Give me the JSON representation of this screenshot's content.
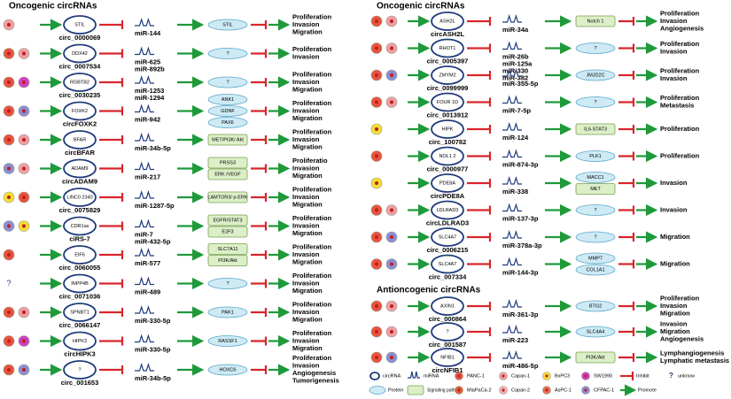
{
  "left": {
    "title": "Oncogenic circRNAs",
    "rows": [
      {
        "cells": [
          "#f0a0a0"
        ],
        "gene": "STIL",
        "circ": "circ_0000069",
        "mirnas": [
          "miR-144"
        ],
        "targets": [
          {
            "text": "STIL",
            "kind": "protein"
          }
        ],
        "outcomes": [
          "Proliferation",
          "Invasion",
          "Migration"
        ]
      },
      {
        "cells": [
          "#e8553a",
          "#f0a0a0"
        ],
        "gene": "DDX42",
        "circ": "circ_0007534",
        "mirnas": [
          "miR-625",
          "miR-892b"
        ],
        "targets": [
          {
            "text": "?",
            "kind": "protein"
          }
        ],
        "outcomes": [
          "Proliferation",
          "Invasion"
        ]
      },
      {
        "cells": [
          "#e8553a",
          "#d040c0"
        ],
        "gene": "RGBTB2",
        "circ": "circ_0030235",
        "mirnas": [
          "miR-1253",
          "miR-1294"
        ],
        "targets": [
          {
            "text": "?",
            "kind": "protein"
          }
        ],
        "outcomes": [
          "Proliferation",
          "Invasion",
          "Migration"
        ]
      },
      {
        "cells": [
          "#e8553a",
          "#8a8fd0"
        ],
        "gene": "FOXK2",
        "circ": "circFOXK2",
        "mirnas": [
          "miR-942"
        ],
        "targets": [
          {
            "text": "ANK1",
            "kind": "protein"
          },
          {
            "text": "GDNF",
            "kind": "protein"
          },
          {
            "text": "PAX6",
            "kind": "protein"
          }
        ],
        "outcomes": [
          "Proliferation",
          "Invasion",
          "Migration"
        ]
      },
      {
        "cells": [
          "#e8553a",
          "#f0a0a0"
        ],
        "gene": "BFAR",
        "circ": "circBFAR",
        "mirnas": [
          "miR-34b-5p"
        ],
        "targets": [
          {
            "text": "MET/PI3K/ Akt",
            "kind": "pathway"
          }
        ],
        "outcomes": [
          "Proliferation",
          "Invasion",
          "Migration"
        ]
      },
      {
        "cells": [
          "#8a8fd0",
          "#f0a0a0"
        ],
        "gene": "ADAM9",
        "circ": "circADAM9",
        "mirnas": [
          "miR-217"
        ],
        "targets": [
          {
            "text": "PRSS3",
            "kind": "pathway"
          },
          {
            "text": "ERK /VEGF",
            "kind": "pathway"
          }
        ],
        "outcomes": [
          "Proliferatio",
          "Invasion",
          "Migration"
        ]
      },
      {
        "cells": [
          "#f5e030",
          "#e8553a"
        ],
        "gene": "LINC0 2340",
        "circ": "circ_0075829",
        "mirnas": [
          "miR-1287-5p"
        ],
        "targets": [
          {
            "text": "LAMTOR3/ p-ERK",
            "kind": "pathway"
          }
        ],
        "outcomes": [
          "Proliferation",
          "Invasion",
          "Migration"
        ]
      },
      {
        "cells": [
          "#8a8fd0",
          "#f5e030"
        ],
        "gene": "CDR1as",
        "circ": "ciRS-7",
        "mirnas": [
          "miR-7",
          "miR-432-5p"
        ],
        "targets": [
          {
            "text": "EGFR/STAT3",
            "kind": "pathway"
          },
          {
            "text": "E2F3",
            "kind": "pathway"
          }
        ],
        "outcomes": [
          "Proliferation",
          "Invasion",
          "Migration"
        ]
      },
      {
        "cells": [
          "#e8553a"
        ],
        "gene": "EIF6",
        "circ": "circ_0060055",
        "mirnas": [
          "miR-577"
        ],
        "targets": [
          {
            "text": "SLC7A11",
            "kind": "pathway"
          },
          {
            "text": "PI3K/Akt",
            "kind": "pathway"
          }
        ],
        "outcomes": [
          "Proliferation",
          "Invasion",
          "Migration"
        ]
      },
      {
        "cells": [
          "?"
        ],
        "gene": "INPP4B",
        "circ": "circ_0071036",
        "mirnas": [
          "miR-489"
        ],
        "targets": [
          {
            "text": "?",
            "kind": "protein"
          }
        ],
        "outcomes": [
          "Proliferation",
          "Invasion",
          "Migration"
        ]
      },
      {
        "cells": [
          "#e8553a",
          "#f0a0a0"
        ],
        "gene": "SPNBT1",
        "circ": "circ_0066147",
        "mirnas": [
          "miR-330-5p"
        ],
        "targets": [
          {
            "text": "PAK1",
            "kind": "protein"
          }
        ],
        "outcomes": [
          "Proliferation",
          "Invasion",
          "Migration"
        ]
      },
      {
        "cells": [
          "#e8553a",
          "#d040c0"
        ],
        "gene": "HIPK3",
        "circ": "circHIPK3",
        "mirnas": [
          "miR-330-5p"
        ],
        "targets": [
          {
            "text": "RASSF1",
            "kind": "protein"
          }
        ],
        "outcomes": [
          "Proliferation",
          "Invasion",
          "Migration"
        ]
      },
      {
        "cells": [
          "#e8553a",
          "#8a8fd0"
        ],
        "gene": "?",
        "circ": "circ_001653",
        "mirnas": [
          "miR-34b-5p"
        ],
        "targets": [
          {
            "text": "HOXC6",
            "kind": "protein"
          }
        ],
        "outcomes": [
          "Proliferation",
          "Invasion",
          "Angiogenesis",
          "Tumorigenesis"
        ]
      }
    ]
  },
  "right": {
    "title": "Oncogenic circRNAs",
    "rows": [
      {
        "cells": [
          "#e8553a",
          "#f0a0a0"
        ],
        "gene": "ASH2L",
        "circ": "circASH2L",
        "mirnas": [
          "miR-34a"
        ],
        "targets": [
          {
            "text": "Notch 1",
            "kind": "pathway"
          }
        ],
        "outcomes": [
          "Proliferation",
          "Invasion",
          "Angiogenesis"
        ]
      },
      {
        "cells": [
          "#e8553a",
          "#f0a0a0"
        ],
        "gene": "RHOT1",
        "circ": "circ_0005397",
        "mirnas": [
          "miR-26b",
          "miR-125a",
          "miR-330",
          "miR-382"
        ],
        "targets": [
          {
            "text": "?",
            "kind": "protein"
          }
        ],
        "outcomes": [
          "Proliferation",
          "Invasion"
        ]
      },
      {
        "cells": [
          "#e8553a",
          "#8a8fd0"
        ],
        "gene": "ZMYM2",
        "circ": "circ_0099999",
        "mirnas": [
          "miR-355-5p"
        ],
        "targets": [
          {
            "text": "JMJD2C",
            "kind": "protein"
          }
        ],
        "outcomes": [
          "Proliferation",
          "Invasion"
        ]
      },
      {
        "cells": [
          "#e8553a",
          "#f0a0a0"
        ],
        "gene": "FOUR 1D",
        "circ": "circ_0013912",
        "mirnas": [
          "miR-7-5p"
        ],
        "targets": [
          {
            "text": "?",
            "kind": "protein"
          }
        ],
        "outcomes": [
          "Proliferation",
          "Metastasis"
        ]
      },
      {
        "cells": [
          "#f5e030"
        ],
        "gene": "HIPK",
        "circ": "circ_100782",
        "mirnas": [
          "miR-124"
        ],
        "targets": [
          {
            "text": "IL6-STAT3",
            "kind": "pathway"
          }
        ],
        "outcomes": [
          "Proliferation"
        ]
      },
      {
        "cells": [
          "#e8553a"
        ],
        "gene": "NOL1 2",
        "circ": "circ_0000977",
        "mirnas": [
          "miR-874-3p"
        ],
        "targets": [
          {
            "text": "PLK1",
            "kind": "protein"
          }
        ],
        "outcomes": [
          "Proliferation"
        ]
      },
      {
        "cells": [
          "#f5e030"
        ],
        "gene": "PDE8A",
        "circ": "circPDE8A",
        "mirnas": [
          "miR-338"
        ],
        "targets": [
          {
            "text": "MACC1",
            "kind": "protein"
          },
          {
            "text": "MET",
            "kind": "pathway"
          }
        ],
        "outcomes": [
          "Invasion"
        ]
      },
      {
        "cells": [
          "#e8553a",
          "#f0a0a0"
        ],
        "gene": "LDLRAD3",
        "circ": "circLDLRAD3",
        "mirnas": [
          "miR-137-3p"
        ],
        "targets": [
          {
            "text": "?",
            "kind": "protein"
          }
        ],
        "outcomes": [
          "Invasion"
        ]
      },
      {
        "cells": [
          "#e8553a",
          "#8a8fd0"
        ],
        "gene": "SLC4A7",
        "circ": "circ_0006215",
        "mirnas": [
          "miR-378a-3p"
        ],
        "targets": [
          {
            "text": "?",
            "kind": "protein"
          }
        ],
        "outcomes": [
          "Migration"
        ]
      },
      {
        "cells": [
          "#e8553a",
          "#8a8fd0"
        ],
        "gene": "SLC4A7",
        "circ": "circ_007334",
        "mirnas": [
          "miR-144-3p"
        ],
        "targets": [
          {
            "text": "MMP7",
            "kind": "protein"
          },
          {
            "text": "COL1A1",
            "kind": "protein"
          }
        ],
        "outcomes": [
          "Migration"
        ]
      }
    ]
  },
  "anti": {
    "title": "Antioncogenic circRNAs",
    "rows": [
      {
        "cells": [
          "#e8553a",
          "#f0a0a0"
        ],
        "gene": "AXIN1",
        "circ": "circ_000864",
        "mirnas": [
          "miR-361-3p"
        ],
        "targets": [
          {
            "text": "BTG2",
            "kind": "protein"
          }
        ],
        "outcomes": [
          "Proliferation",
          "Invasion",
          "Migration"
        ]
      },
      {
        "cells": [
          "#e8553a",
          "#f0a0a0"
        ],
        "gene": "?",
        "circ": "circ_001587",
        "mirnas": [
          "miR-223"
        ],
        "targets": [
          {
            "text": "SLC4A4",
            "kind": "protein"
          }
        ],
        "outcomes": [
          "Invasion",
          "Migration",
          "Angiogenesis"
        ]
      },
      {
        "cells": [
          "#e8553a",
          "#8a8fd0"
        ],
        "gene": "NFIB1",
        "circ": "circNFIB1",
        "mirnas": [
          "miR-486-5p"
        ],
        "targets": [
          {
            "text": "PI3K/Akt",
            "kind": "pathway"
          }
        ],
        "outcomes": [
          "Lymphangiogenesis",
          "Lymphatic metastasis"
        ]
      }
    ]
  },
  "legend": [
    {
      "kind": "circ",
      "label": "circRNA"
    },
    {
      "kind": "mirna",
      "label": "miRNA"
    },
    {
      "kind": "dot",
      "color": "#e8553a",
      "label": "PANC-1"
    },
    {
      "kind": "dot",
      "color": "#f0a0a0",
      "label": "Capan-1"
    },
    {
      "kind": "dot",
      "color": "#f5e030",
      "label": "BxPC3"
    },
    {
      "kind": "dot",
      "color": "#d040c0",
      "label": "SW1990"
    },
    {
      "kind": "inhibit",
      "label": "Inhibit"
    },
    {
      "kind": "text",
      "mark": "?",
      "label": "unknow"
    },
    {
      "kind": "protein",
      "label": "Protein"
    },
    {
      "kind": "pathway",
      "label": "Signaling pathway"
    },
    {
      "kind": "dot",
      "color": "#e06030",
      "label": "MiaPaCa-2"
    },
    {
      "kind": "dot",
      "color": "#f4b0b0",
      "label": "Capan-2"
    },
    {
      "kind": "dot",
      "color": "#e87050",
      "label": "AsPC-1"
    },
    {
      "kind": "dot",
      "color": "#8a8fd0",
      "label": "CFPAC-1"
    },
    {
      "kind": "promote",
      "label": "Promote"
    }
  ]
}
